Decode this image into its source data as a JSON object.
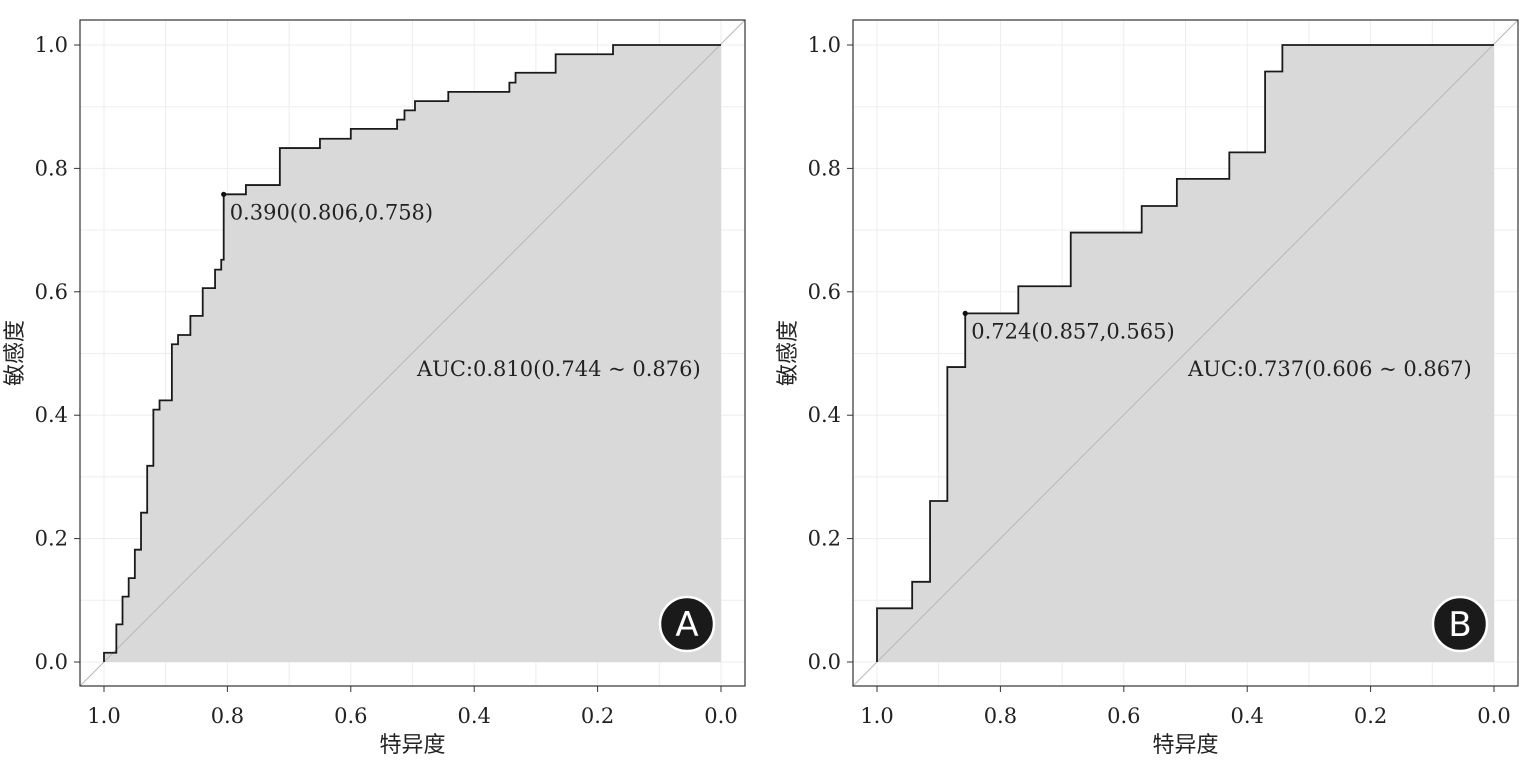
{
  "chart_data": [
    {
      "type": "line",
      "panel_label": "A",
      "xlabel": "特异度",
      "ylabel": "敏感度",
      "xlim": [
        1.0,
        0.0
      ],
      "ylim": [
        0.0,
        1.0
      ],
      "x_ticks": [
        "1.0",
        "0.8",
        "0.6",
        "0.4",
        "0.2",
        "0.0"
      ],
      "y_ticks": [
        "0.0",
        "0.2",
        "0.4",
        "0.6",
        "0.8",
        "1.0"
      ],
      "grid": true,
      "area_fill": "#d9d9d9",
      "diagonal_reference": true,
      "auc_text": "AUC:0.810(0.744 ~ 0.876)",
      "cutoff": {
        "specificity": 0.806,
        "sensitivity": 0.758,
        "label": "0.390(0.806,0.758)"
      },
      "roc_points": [
        [
          1.0,
          0.0
        ],
        [
          1.0,
          0.015
        ],
        [
          0.98,
          0.015
        ],
        [
          0.98,
          0.061
        ],
        [
          0.97,
          0.061
        ],
        [
          0.97,
          0.106
        ],
        [
          0.96,
          0.106
        ],
        [
          0.96,
          0.136
        ],
        [
          0.95,
          0.136
        ],
        [
          0.95,
          0.182
        ],
        [
          0.94,
          0.182
        ],
        [
          0.94,
          0.242
        ],
        [
          0.93,
          0.242
        ],
        [
          0.93,
          0.318
        ],
        [
          0.92,
          0.318
        ],
        [
          0.92,
          0.409
        ],
        [
          0.91,
          0.409
        ],
        [
          0.91,
          0.424
        ],
        [
          0.89,
          0.424
        ],
        [
          0.89,
          0.515
        ],
        [
          0.88,
          0.515
        ],
        [
          0.88,
          0.53
        ],
        [
          0.86,
          0.53
        ],
        [
          0.86,
          0.561
        ],
        [
          0.84,
          0.561
        ],
        [
          0.84,
          0.606
        ],
        [
          0.82,
          0.606
        ],
        [
          0.82,
          0.636
        ],
        [
          0.81,
          0.636
        ],
        [
          0.81,
          0.652
        ],
        [
          0.806,
          0.652
        ],
        [
          0.806,
          0.758
        ],
        [
          0.77,
          0.758
        ],
        [
          0.77,
          0.773
        ],
        [
          0.715,
          0.773
        ],
        [
          0.715,
          0.833
        ],
        [
          0.65,
          0.833
        ],
        [
          0.65,
          0.848
        ],
        [
          0.6,
          0.848
        ],
        [
          0.6,
          0.864
        ],
        [
          0.525,
          0.864
        ],
        [
          0.525,
          0.879
        ],
        [
          0.513,
          0.879
        ],
        [
          0.513,
          0.894
        ],
        [
          0.496,
          0.894
        ],
        [
          0.496,
          0.909
        ],
        [
          0.442,
          0.909
        ],
        [
          0.442,
          0.924
        ],
        [
          0.343,
          0.924
        ],
        [
          0.343,
          0.939
        ],
        [
          0.333,
          0.939
        ],
        [
          0.333,
          0.955
        ],
        [
          0.268,
          0.955
        ],
        [
          0.268,
          0.985
        ],
        [
          0.175,
          0.985
        ],
        [
          0.175,
          1.0
        ],
        [
          0.0,
          1.0
        ]
      ]
    },
    {
      "type": "line",
      "panel_label": "B",
      "xlabel": "特异度",
      "ylabel": "敏感度",
      "xlim": [
        1.0,
        0.0
      ],
      "ylim": [
        0.0,
        1.0
      ],
      "x_ticks": [
        "1.0",
        "0.8",
        "0.6",
        "0.4",
        "0.2",
        "0.0"
      ],
      "y_ticks": [
        "0.0",
        "0.2",
        "0.4",
        "0.6",
        "0.8",
        "1.0"
      ],
      "grid": true,
      "area_fill": "#d9d9d9",
      "diagonal_reference": true,
      "auc_text": "AUC:0.737(0.606 ~ 0.867)",
      "cutoff": {
        "specificity": 0.857,
        "sensitivity": 0.565,
        "label": "0.724(0.857,0.565)"
      },
      "roc_points": [
        [
          1.0,
          0.0
        ],
        [
          1.0,
          0.087
        ],
        [
          0.943,
          0.087
        ],
        [
          0.943,
          0.13
        ],
        [
          0.914,
          0.13
        ],
        [
          0.914,
          0.261
        ],
        [
          0.886,
          0.261
        ],
        [
          0.886,
          0.478
        ],
        [
          0.857,
          0.478
        ],
        [
          0.857,
          0.565
        ],
        [
          0.771,
          0.565
        ],
        [
          0.771,
          0.609
        ],
        [
          0.686,
          0.609
        ],
        [
          0.686,
          0.696
        ],
        [
          0.571,
          0.696
        ],
        [
          0.571,
          0.739
        ],
        [
          0.514,
          0.739
        ],
        [
          0.514,
          0.783
        ],
        [
          0.429,
          0.783
        ],
        [
          0.429,
          0.826
        ],
        [
          0.371,
          0.826
        ],
        [
          0.371,
          0.957
        ],
        [
          0.343,
          0.957
        ],
        [
          0.343,
          1.0
        ],
        [
          0.0,
          1.0
        ]
      ]
    }
  ]
}
